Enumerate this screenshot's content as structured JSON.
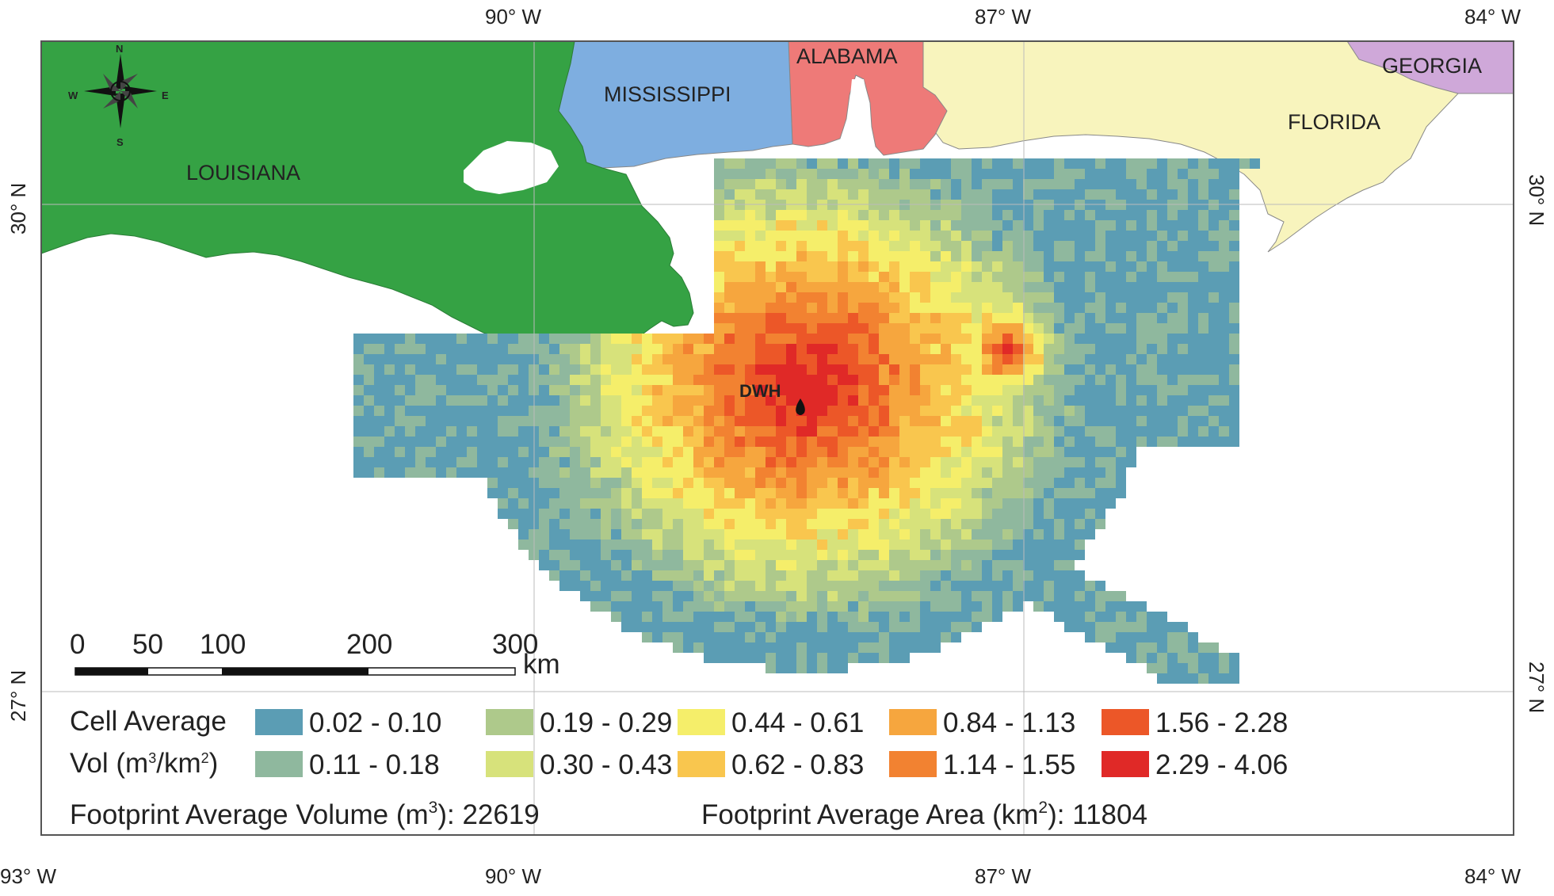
{
  "coords": {
    "top": [
      "90° W",
      "87° W",
      "84° W"
    ],
    "bottom": [
      "93° W",
      "90° W",
      "87° W",
      "84° W"
    ],
    "left": [
      "30° N",
      "27° N"
    ],
    "right": [
      "30° N",
      "27° N"
    ]
  },
  "states": {
    "louisiana": "LOUISIANA",
    "mississippi": "MISSISSIPPI",
    "alabama": "ALABAMA",
    "georgia": "GEORGIA",
    "florida": "FLORIDA"
  },
  "colors": {
    "louisiana": "#35a244",
    "mississippi": "#7eaee0",
    "alabama": "#ee7a78",
    "georgia": "#cfa8d9",
    "florida": "#f8f4bd"
  },
  "compass": {
    "n": "N",
    "s": "S",
    "e": "E",
    "w": "W"
  },
  "well_label": "DWH",
  "scale_bar": {
    "ticks": [
      "0",
      "50",
      "100",
      "200",
      "300"
    ],
    "unit": "km"
  },
  "legend": {
    "title_line1": "Cell Average",
    "title_line2_prefix": "Vol (m",
    "title_line2_sup1": "3",
    "title_line2_mid": "/km",
    "title_line2_sup2": "2",
    "title_line2_suffix": ")",
    "classes": [
      {
        "label": "0.02 - 0.10",
        "color": "#5b9db4"
      },
      {
        "label": "0.11 - 0.18",
        "color": "#8fb89e"
      },
      {
        "label": "0.19 - 0.29",
        "color": "#aec98b"
      },
      {
        "label": "0.30 - 0.43",
        "color": "#d7e27b"
      },
      {
        "label": "0.44 - 0.61",
        "color": "#f5ee6a"
      },
      {
        "label": "0.62 - 0.83",
        "color": "#f9c64e"
      },
      {
        "label": "0.84 - 1.13",
        "color": "#f6a63e"
      },
      {
        "label": "1.14 - 1.55",
        "color": "#f28231"
      },
      {
        "label": "1.56 - 2.28",
        "color": "#ec5728"
      },
      {
        "label": "2.29 - 4.06",
        "color": "#e02927"
      }
    ]
  },
  "footprint": {
    "volume_prefix": "Footprint Average Volume (m",
    "volume_sup": "3",
    "volume_suffix": "): 22619",
    "area_prefix": "Footprint Average Area (km",
    "area_sup": "2",
    "area_suffix": "): 11804"
  }
}
